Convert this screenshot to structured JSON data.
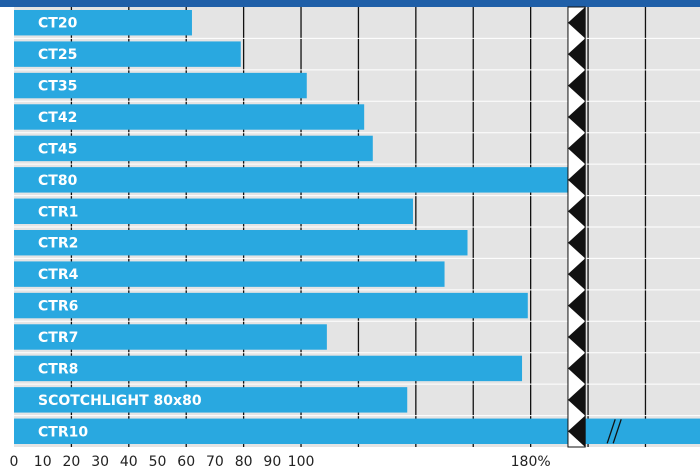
{
  "chart_data": {
    "type": "bar",
    "orientation": "horizontal",
    "color": "#29a8e0",
    "categories": [
      "CT20",
      "CT25",
      "CT35",
      "CT42",
      "CT45",
      "CT80",
      "CTR1",
      "CTR2",
      "CTR4",
      "CTR6",
      "CTR7",
      "CTR8",
      "SCOTCHLIGHT 80x80",
      "CTR10"
    ],
    "values": [
      62,
      79,
      102,
      122,
      125,
      193,
      139,
      158,
      150,
      179,
      109,
      177,
      137,
      239
    ],
    "xlim": [
      0,
      239
    ],
    "xticks": [
      0,
      10,
      20,
      30,
      40,
      50,
      60,
      70,
      80,
      90,
      100,
      {
        "value": 180,
        "label": "180%"
      }
    ],
    "xgrid": [
      20,
      40,
      60,
      80,
      100,
      120,
      140,
      160,
      180,
      200,
      220
    ],
    "axis_break": [
      193,
      199
    ],
    "grid": true
  }
}
